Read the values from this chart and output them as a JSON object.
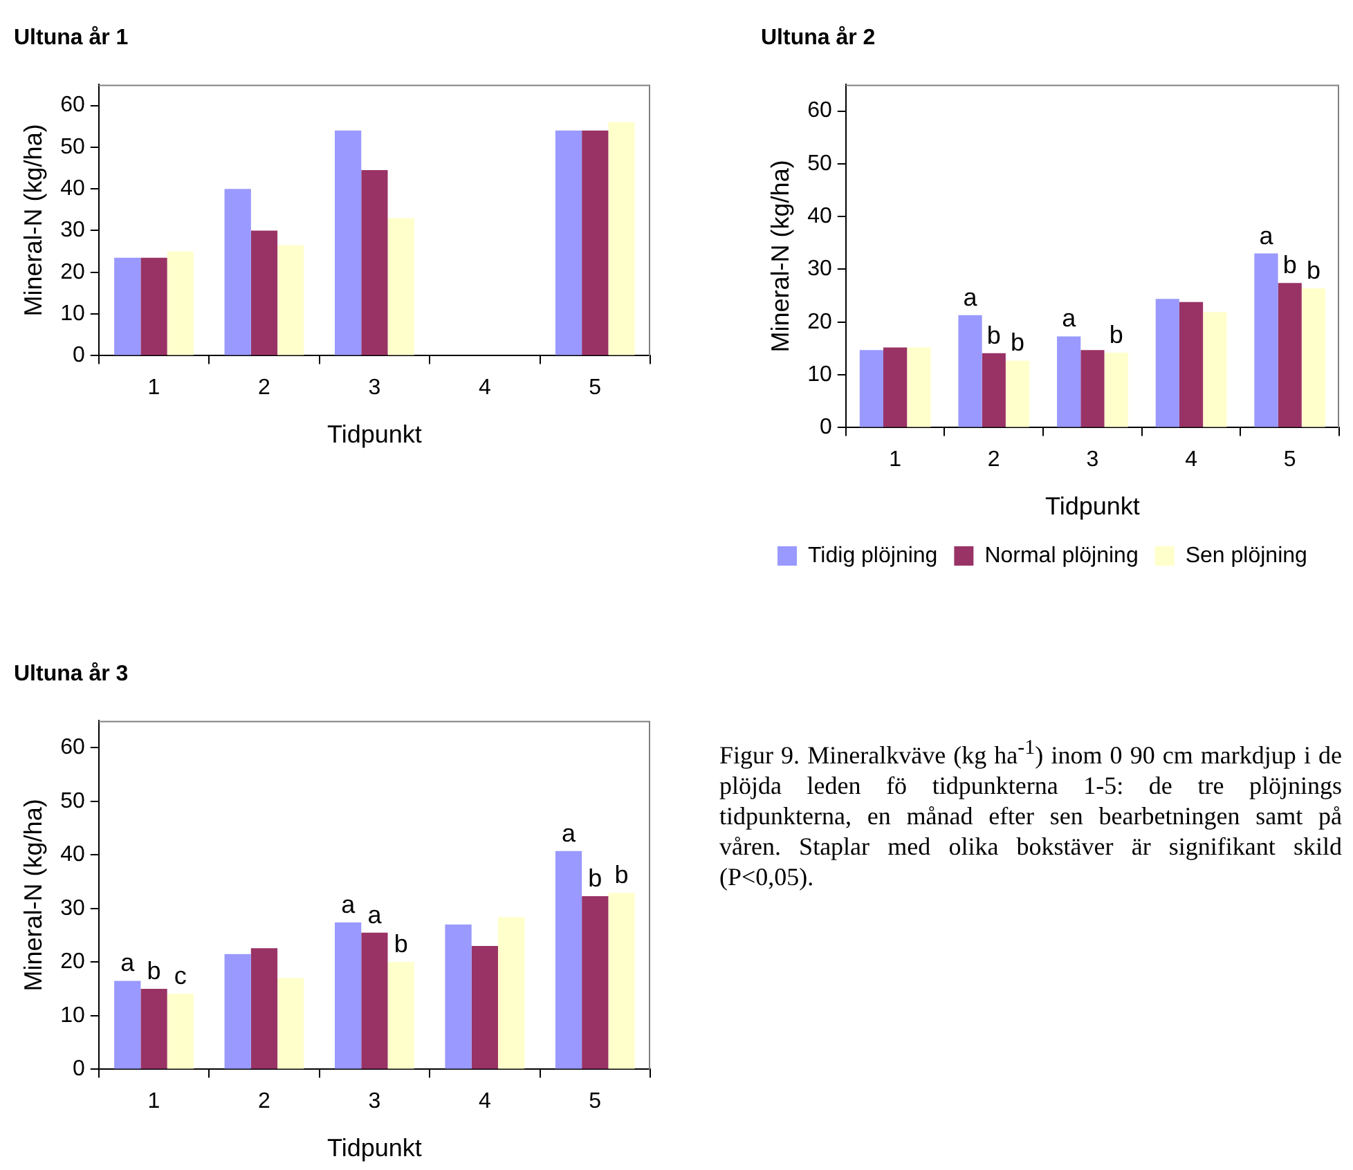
{
  "chart_data": [
    {
      "type": "bar",
      "title": "Ultuna år 1",
      "xlabel": "Tidpunkt",
      "ylabel": "Mineral-N (kg/ha)",
      "categories": [
        "1",
        "2",
        "3",
        "4",
        "5"
      ],
      "series": [
        {
          "color": "#9999ff",
          "values": [
            23.5,
            40,
            54,
            null,
            54
          ]
        },
        {
          "color": "#993366",
          "values": [
            23.5,
            30,
            44.5,
            null,
            54
          ]
        },
        {
          "color": "#ffffcc",
          "values": [
            25,
            26.5,
            33,
            null,
            56
          ]
        }
      ],
      "ylim": [
        0,
        65
      ],
      "yticks": [
        0,
        10,
        20,
        30,
        40,
        50,
        60
      ],
      "grid": false,
      "legend": false
    },
    {
      "type": "bar",
      "title": "Ultuna år 2",
      "xlabel": "Tidpunkt",
      "ylabel": "Mineral-N (kg/ha)",
      "categories": [
        "1",
        "2",
        "3",
        "4",
        "5"
      ],
      "series": [
        {
          "name": "Tidig plöjning",
          "color": "#9999ff",
          "values": [
            14.7,
            21.3,
            17.3,
            24.4,
            33
          ],
          "value_labels": [
            null,
            "a",
            "a",
            null,
            "a"
          ]
        },
        {
          "name": "Normal plöjning",
          "color": "#993366",
          "values": [
            15.2,
            14.1,
            14.7,
            23.8,
            27.4
          ],
          "value_labels": [
            null,
            "b",
            null,
            null,
            "b"
          ]
        },
        {
          "name": "Sen plöjning",
          "color": "#ffffcc",
          "values": [
            15.2,
            12.7,
            14.2,
            21.9,
            26.4
          ],
          "value_labels": [
            null,
            "b",
            "b",
            null,
            "b"
          ]
        }
      ],
      "ylim": [
        0,
        65
      ],
      "yticks": [
        0,
        10,
        20,
        30,
        40,
        50,
        60
      ],
      "grid": false,
      "legend": "bottom"
    },
    {
      "type": "bar",
      "title": "Ultuna år 3",
      "xlabel": "Tidpunkt",
      "ylabel": "Mineral-N (kg/ha)",
      "categories": [
        "1",
        "2",
        "3",
        "4",
        "5"
      ],
      "series": [
        {
          "color": "#9999ff",
          "values": [
            16.5,
            21.5,
            27.4,
            27,
            40.7
          ],
          "value_labels": [
            "a",
            null,
            "a",
            null,
            "a"
          ]
        },
        {
          "color": "#993366",
          "values": [
            15,
            22.6,
            25.5,
            23,
            32.3
          ],
          "value_labels": [
            "b",
            null,
            "a",
            null,
            "b"
          ]
        },
        {
          "color": "#ffffcc",
          "values": [
            14.1,
            17,
            20,
            28.4,
            32.9
          ],
          "value_labels": [
            "c",
            null,
            "b",
            null,
            "b"
          ]
        }
      ],
      "ylim": [
        0,
        65
      ],
      "yticks": [
        0,
        10,
        20,
        30,
        40,
        50,
        60
      ],
      "grid": false,
      "legend": false,
      "annotations": [
        "Figur 9. Mineralkväve (kg ha$^{-1}$) inom 0 90 cm markdjup i de plöjda leden fö tidpunkterna 1-5: de tre plöjnings tidpunkterna, en månad efter sen bearbetningen samt på våren. Staplar med olika bokstäver är signifikant skild (P<0,05)."
      ]
    }
  ]
}
